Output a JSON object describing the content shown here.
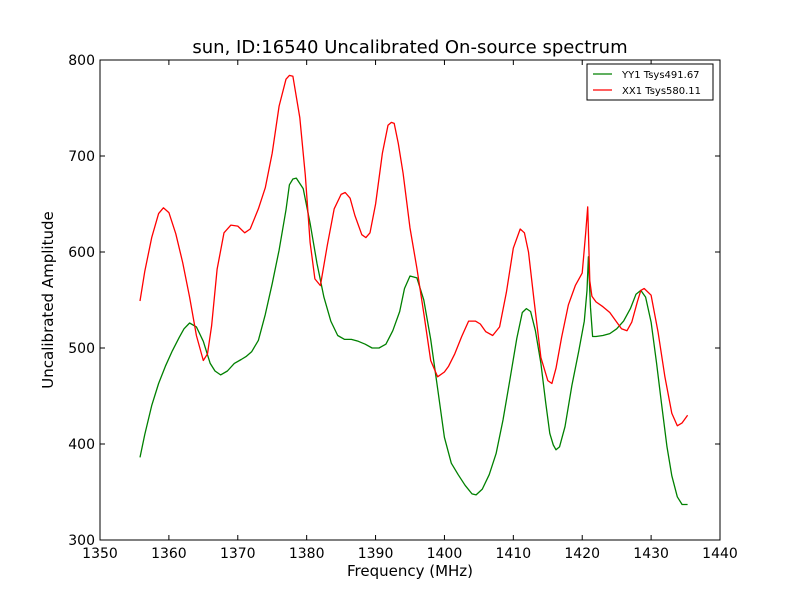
{
  "chart_data": {
    "type": "line",
    "title": "sun, ID:16540 Uncalibrated On-source spectrum",
    "xlabel": "Frequency (MHz)",
    "ylabel": "Uncalibrated Amplitude",
    "xlim": [
      1350,
      1440
    ],
    "ylim": [
      300,
      800
    ],
    "xticks": [
      1350,
      1360,
      1370,
      1380,
      1390,
      1400,
      1410,
      1420,
      1430,
      1440
    ],
    "yticks": [
      300,
      400,
      500,
      600,
      700,
      800
    ],
    "grid": false,
    "legend_position": "top-right",
    "series": [
      {
        "name": "YY1 Tsys491.67",
        "color": "#008000",
        "x": [
          1355.8,
          1356.5,
          1357.5,
          1358.5,
          1359.5,
          1360.5,
          1361.5,
          1362.2,
          1363,
          1364,
          1365,
          1366,
          1366.7,
          1367.5,
          1368.5,
          1369.5,
          1370.5,
          1371.2,
          1372,
          1373,
          1374,
          1375,
          1376,
          1377,
          1377.5,
          1378,
          1378.5,
          1379.5,
          1380.5,
          1381.5,
          1382.5,
          1383.5,
          1384.5,
          1385.5,
          1386.5,
          1387.5,
          1388.5,
          1389.5,
          1390.5,
          1391.5,
          1392.5,
          1393.5,
          1394.2,
          1395,
          1396,
          1397,
          1398,
          1399,
          1400,
          1401,
          1402,
          1403,
          1404,
          1404.6,
          1405.5,
          1406.5,
          1407.5,
          1408.5,
          1409.5,
          1410.5,
          1411.3,
          1411.9,
          1412.5,
          1413.2,
          1414,
          1414.7,
          1415.3,
          1415.8,
          1416.2,
          1416.7,
          1417.5,
          1418.5,
          1419.5,
          1420.3,
          1420.7,
          1420.9,
          1421.2,
          1421.5,
          1422,
          1423,
          1424,
          1425,
          1426,
          1427,
          1427.8,
          1428.5,
          1429.2,
          1430,
          1430.8,
          1431.5,
          1432.3,
          1433,
          1433.8,
          1434.5,
          1435.3
        ],
        "values": [
          386,
          410,
          440,
          463,
          481,
          497,
          511,
          520,
          526,
          522,
          507,
          484,
          476,
          472,
          476,
          484,
          488,
          491,
          496,
          508,
          535,
          567,
          602,
          644,
          670,
          676,
          677,
          666,
          630,
          588,
          553,
          528,
          513,
          509,
          509,
          507,
          504,
          500,
          500,
          504,
          518,
          538,
          562,
          575,
          573,
          550,
          509,
          458,
          407,
          380,
          368,
          357,
          348,
          347,
          353,
          368,
          390,
          425,
          467,
          510,
          537,
          541,
          538,
          518,
          484,
          443,
          411,
          399,
          394,
          397,
          418,
          461,
          497,
          528,
          560,
          595,
          542,
          512,
          512,
          513,
          515,
          520,
          528,
          541,
          556,
          560,
          553,
          527,
          484,
          443,
          397,
          367,
          345,
          337,
          337
        ]
      },
      {
        "name": "XX1 Tsys580.11",
        "color": "#ff0000",
        "x": [
          1355.8,
          1356.5,
          1357.5,
          1358.5,
          1359.2,
          1360,
          1361,
          1362,
          1363,
          1364,
          1365,
          1365.6,
          1366.2,
          1367,
          1368,
          1369,
          1370,
          1371,
          1371.8,
          1373,
          1374,
          1375,
          1376,
          1377,
          1377.5,
          1378,
          1379,
          1379.8,
          1380.5,
          1381.2,
          1382,
          1383,
          1384,
          1385,
          1385.6,
          1386.3,
          1387,
          1388,
          1388.6,
          1389.2,
          1390,
          1391,
          1391.8,
          1392.3,
          1392.7,
          1393.3,
          1394,
          1395,
          1396,
          1397,
          1398,
          1399,
          1400,
          1400.6,
          1401.5,
          1402.5,
          1403.5,
          1404.5,
          1405.2,
          1406,
          1407,
          1408,
          1409,
          1410,
          1411,
          1411.6,
          1412.2,
          1413,
          1414,
          1415,
          1415.6,
          1416.2,
          1417,
          1418,
          1419,
          1420,
          1420.5,
          1420.8,
          1421.1,
          1421.4,
          1422,
          1423,
          1424,
          1425,
          1425.7,
          1426.5,
          1427.2,
          1428,
          1428.5,
          1429,
          1430,
          1431,
          1432,
          1433,
          1433.8,
          1434.5,
          1435.3
        ],
        "values": [
          549,
          580,
          615,
          640,
          646,
          641,
          619,
          589,
          553,
          513,
          487,
          494,
          523,
          582,
          620,
          628,
          627,
          620,
          624,
          645,
          667,
          703,
          752,
          780,
          784,
          783,
          740,
          680,
          610,
          572,
          565,
          607,
          645,
          660,
          662,
          656,
          638,
          618,
          615,
          620,
          650,
          703,
          732,
          735,
          734,
          713,
          682,
          625,
          583,
          536,
          487,
          470,
          475,
          481,
          494,
          512,
          528,
          528,
          525,
          517,
          513,
          522,
          558,
          604,
          624,
          620,
          600,
          550,
          490,
          466,
          463,
          479,
          511,
          545,
          565,
          578,
          620,
          647,
          570,
          554,
          548,
          543,
          537,
          527,
          520,
          518,
          527,
          548,
          560,
          562,
          555,
          517,
          470,
          432,
          419,
          422,
          430
        ]
      }
    ]
  }
}
